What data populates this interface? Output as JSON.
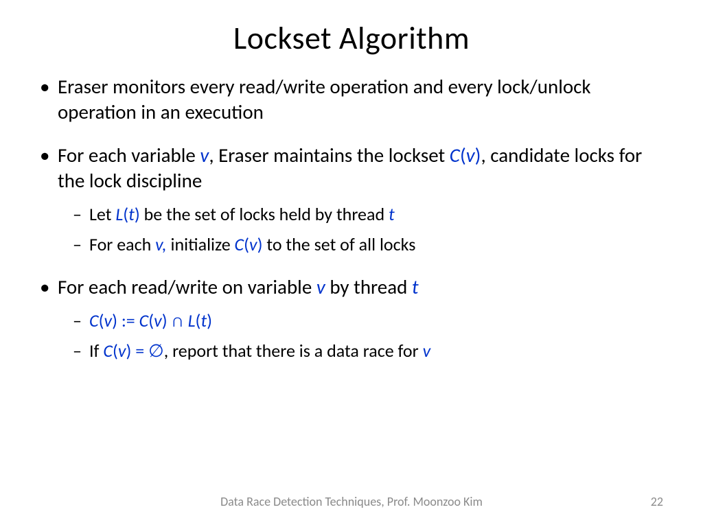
{
  "title": "Lockset Algorithm",
  "colors": {
    "text": "#000000",
    "math": "#0033cc",
    "footer": "#8a8a8a",
    "background": "#ffffff"
  },
  "typography": {
    "title_fontsize": 46,
    "bullet_fontsize": 29,
    "sub_bullet_fontsize": 26,
    "footer_fontsize": 18,
    "font_family": "Calibri"
  },
  "bullets": {
    "b1": "Eraser monitors every read/write operation and every lock/unlock operation in an execution",
    "b2_pre": "For each variable ",
    "b2_v": "v",
    "b2_mid": ", Eraser maintains the lockset ",
    "b2_C": "C",
    "b2_paren_open": "(",
    "b2_v2": "v",
    "b2_paren_close": ")",
    "b2_post": ", candidate locks for the lock discipline",
    "b2s1_pre": "Let ",
    "b2s1_L": "L",
    "b2s1_po": "(",
    "b2s1_t": "t",
    "b2s1_pc": ")",
    "b2s1_mid": " be the set of locks held by thread ",
    "b2s1_t2": "t",
    "b2s2_pre": "For each ",
    "b2s2_v": "v",
    "b2s2_comma": ",",
    "b2s2_mid": " initialize ",
    "b2s2_C": "C",
    "b2s2_po": "(",
    "b2s2_v2": "v",
    "b2s2_pc": ")",
    "b2s2_post": " to the set of all locks",
    "b3_pre": "For each read/write on variable ",
    "b3_v": "v",
    "b3_mid": " by thread ",
    "b3_t": "t",
    "b3s1": "C(v) := C(v) ∩ L(t)",
    "b3s1_C1": "C",
    "b3s1_po1": "(",
    "b3s1_v1": "v",
    "b3s1_pc1": ")",
    "b3s1_assign": " := ",
    "b3s1_C2": "C",
    "b3s1_po2": "(",
    "b3s1_v2": "v",
    "b3s1_pc2": ")",
    "b3s1_cap": " ∩ ",
    "b3s1_L": "L",
    "b3s1_po3": "(",
    "b3s1_t": "t",
    "b3s1_pc3": ")",
    "b3s2_pre": "If ",
    "b3s2_C": "C",
    "b3s2_po": "(",
    "b3s2_v": "v",
    "b3s2_pc": ")",
    "b3s2_eq": " = ",
    "b3s2_empty": "∅",
    "b3s2_mid": ", report that there is a data race for ",
    "b3s2_v2": "v"
  },
  "footer": "Data Race Detection Techniques, Prof. Moonzoo Kim",
  "page_number": "22"
}
